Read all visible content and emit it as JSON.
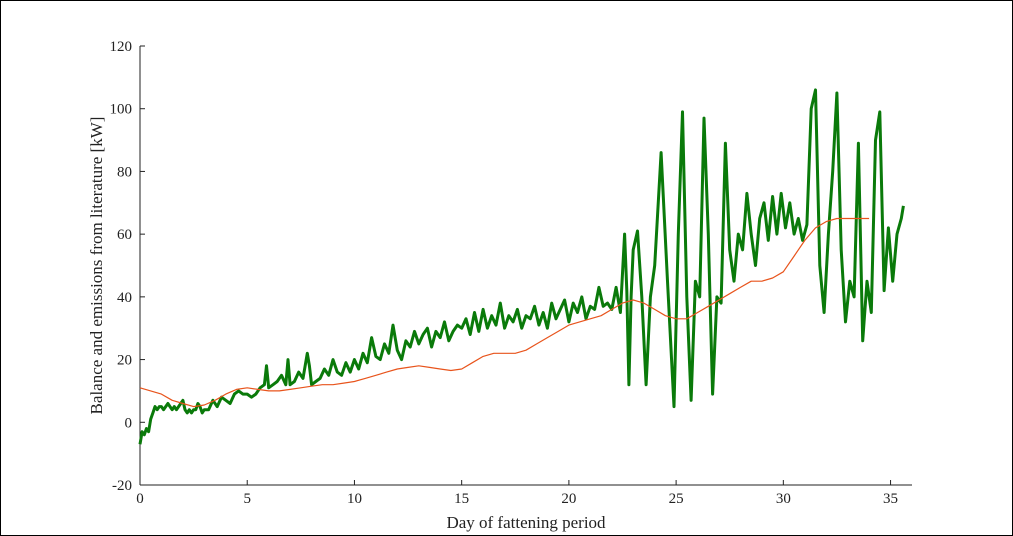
{
  "chart_data": {
    "type": "line",
    "xlabel": "Day of fattening period",
    "ylabel": "Balance and emissions from literature [kW]",
    "xlim": [
      0,
      36
    ],
    "ylim": [
      -20,
      120
    ],
    "xticks": [
      "0",
      "5",
      "10",
      "15",
      "20",
      "25",
      "30",
      "35"
    ],
    "yticks": [
      "-20",
      "0",
      "20",
      "40",
      "60",
      "80",
      "100",
      "120"
    ],
    "grid": false,
    "colors": {
      "balance": "#0a7a0a",
      "literature": "#e8541c"
    },
    "series": [
      {
        "key": "balance",
        "points": [
          [
            0.0,
            -7
          ],
          [
            0.1,
            -3
          ],
          [
            0.2,
            -4
          ],
          [
            0.3,
            -2
          ],
          [
            0.4,
            -3
          ],
          [
            0.5,
            1
          ],
          [
            0.6,
            3
          ],
          [
            0.7,
            5
          ],
          [
            0.8,
            4
          ],
          [
            0.9,
            5
          ],
          [
            1.0,
            5
          ],
          [
            1.1,
            4
          ],
          [
            1.2,
            5
          ],
          [
            1.3,
            6
          ],
          [
            1.4,
            5
          ],
          [
            1.5,
            4
          ],
          [
            1.6,
            5
          ],
          [
            1.7,
            4
          ],
          [
            1.8,
            5
          ],
          [
            1.9,
            6
          ],
          [
            2.0,
            7
          ],
          [
            2.1,
            4
          ],
          [
            2.2,
            3
          ],
          [
            2.3,
            4
          ],
          [
            2.4,
            3
          ],
          [
            2.5,
            4
          ],
          [
            2.6,
            4
          ],
          [
            2.7,
            6
          ],
          [
            2.8,
            5
          ],
          [
            2.9,
            3
          ],
          [
            3.0,
            4
          ],
          [
            3.2,
            4
          ],
          [
            3.4,
            7
          ],
          [
            3.6,
            5
          ],
          [
            3.8,
            8
          ],
          [
            4.0,
            7
          ],
          [
            4.2,
            6
          ],
          [
            4.4,
            9
          ],
          [
            4.6,
            10
          ],
          [
            4.8,
            9
          ],
          [
            5.0,
            9
          ],
          [
            5.2,
            8
          ],
          [
            5.4,
            9
          ],
          [
            5.6,
            11
          ],
          [
            5.8,
            12
          ],
          [
            5.9,
            18
          ],
          [
            6.0,
            11
          ],
          [
            6.2,
            12
          ],
          [
            6.4,
            13
          ],
          [
            6.6,
            15
          ],
          [
            6.8,
            12
          ],
          [
            6.9,
            20
          ],
          [
            7.0,
            12
          ],
          [
            7.2,
            13
          ],
          [
            7.4,
            16
          ],
          [
            7.6,
            14
          ],
          [
            7.8,
            22
          ],
          [
            7.9,
            18
          ],
          [
            8.0,
            12
          ],
          [
            8.2,
            13
          ],
          [
            8.4,
            14
          ],
          [
            8.6,
            17
          ],
          [
            8.8,
            15
          ],
          [
            9.0,
            20
          ],
          [
            9.2,
            16
          ],
          [
            9.4,
            15
          ],
          [
            9.6,
            19
          ],
          [
            9.8,
            16
          ],
          [
            10.0,
            20
          ],
          [
            10.2,
            17
          ],
          [
            10.4,
            22
          ],
          [
            10.6,
            19
          ],
          [
            10.8,
            27
          ],
          [
            11.0,
            21
          ],
          [
            11.2,
            20
          ],
          [
            11.4,
            25
          ],
          [
            11.6,
            22
          ],
          [
            11.8,
            31
          ],
          [
            12.0,
            23
          ],
          [
            12.2,
            20
          ],
          [
            12.4,
            26
          ],
          [
            12.6,
            24
          ],
          [
            12.8,
            29
          ],
          [
            13.0,
            25
          ],
          [
            13.2,
            28
          ],
          [
            13.4,
            30
          ],
          [
            13.6,
            24
          ],
          [
            13.8,
            29
          ],
          [
            14.0,
            27
          ],
          [
            14.2,
            32
          ],
          [
            14.4,
            26
          ],
          [
            14.6,
            29
          ],
          [
            14.8,
            31
          ],
          [
            15.0,
            30
          ],
          [
            15.2,
            33
          ],
          [
            15.4,
            28
          ],
          [
            15.6,
            35
          ],
          [
            15.8,
            29
          ],
          [
            16.0,
            36
          ],
          [
            16.2,
            30
          ],
          [
            16.4,
            34
          ],
          [
            16.6,
            31
          ],
          [
            16.8,
            38
          ],
          [
            17.0,
            30
          ],
          [
            17.2,
            34
          ],
          [
            17.4,
            32
          ],
          [
            17.6,
            36
          ],
          [
            17.8,
            30
          ],
          [
            18.0,
            34
          ],
          [
            18.2,
            33
          ],
          [
            18.4,
            37
          ],
          [
            18.6,
            31
          ],
          [
            18.8,
            35
          ],
          [
            19.0,
            30
          ],
          [
            19.2,
            38
          ],
          [
            19.4,
            33
          ],
          [
            19.6,
            36
          ],
          [
            19.8,
            39
          ],
          [
            20.0,
            32
          ],
          [
            20.2,
            38
          ],
          [
            20.4,
            35
          ],
          [
            20.6,
            40
          ],
          [
            20.8,
            33
          ],
          [
            21.0,
            37
          ],
          [
            21.2,
            36
          ],
          [
            21.4,
            43
          ],
          [
            21.6,
            37
          ],
          [
            21.8,
            38
          ],
          [
            22.0,
            36
          ],
          [
            22.2,
            43
          ],
          [
            22.4,
            35
          ],
          [
            22.6,
            60
          ],
          [
            22.7,
            42
          ],
          [
            22.8,
            12
          ],
          [
            22.9,
            40
          ],
          [
            23.0,
            55
          ],
          [
            23.2,
            61
          ],
          [
            23.4,
            40
          ],
          [
            23.6,
            12
          ],
          [
            23.8,
            40
          ],
          [
            24.0,
            50
          ],
          [
            24.3,
            86
          ],
          [
            24.6,
            45
          ],
          [
            24.9,
            5
          ],
          [
            25.1,
            60
          ],
          [
            25.3,
            99
          ],
          [
            25.5,
            40
          ],
          [
            25.7,
            7
          ],
          [
            25.9,
            45
          ],
          [
            26.1,
            40
          ],
          [
            26.3,
            97
          ],
          [
            26.5,
            60
          ],
          [
            26.7,
            9
          ],
          [
            26.9,
            40
          ],
          [
            27.1,
            38
          ],
          [
            27.3,
            89
          ],
          [
            27.5,
            55
          ],
          [
            27.7,
            45
          ],
          [
            27.9,
            60
          ],
          [
            28.1,
            55
          ],
          [
            28.3,
            73
          ],
          [
            28.5,
            60
          ],
          [
            28.7,
            50
          ],
          [
            28.9,
            65
          ],
          [
            29.1,
            70
          ],
          [
            29.3,
            58
          ],
          [
            29.5,
            72
          ],
          [
            29.7,
            60
          ],
          [
            29.9,
            73
          ],
          [
            30.1,
            62
          ],
          [
            30.3,
            70
          ],
          [
            30.5,
            60
          ],
          [
            30.7,
            65
          ],
          [
            30.9,
            58
          ],
          [
            31.1,
            63
          ],
          [
            31.3,
            100
          ],
          [
            31.5,
            106
          ],
          [
            31.7,
            50
          ],
          [
            31.9,
            35
          ],
          [
            32.1,
            60
          ],
          [
            32.3,
            80
          ],
          [
            32.5,
            105
          ],
          [
            32.7,
            55
          ],
          [
            32.9,
            32
          ],
          [
            33.1,
            45
          ],
          [
            33.3,
            40
          ],
          [
            33.5,
            89
          ],
          [
            33.7,
            26
          ],
          [
            33.9,
            45
          ],
          [
            34.1,
            35
          ],
          [
            34.3,
            90
          ],
          [
            34.5,
            99
          ],
          [
            34.7,
            42
          ],
          [
            34.9,
            62
          ],
          [
            35.1,
            45
          ],
          [
            35.3,
            60
          ],
          [
            35.5,
            65
          ],
          [
            35.6,
            69
          ]
        ]
      },
      {
        "key": "literature",
        "points": [
          [
            0,
            11
          ],
          [
            0.5,
            10
          ],
          [
            1,
            9
          ],
          [
            1.5,
            7
          ],
          [
            2,
            6
          ],
          [
            2.5,
            5
          ],
          [
            3,
            5.5
          ],
          [
            3.5,
            7
          ],
          [
            4,
            9
          ],
          [
            4.5,
            10.5
          ],
          [
            5,
            11
          ],
          [
            5.5,
            10.5
          ],
          [
            6,
            10
          ],
          [
            6.5,
            10
          ],
          [
            7,
            10.5
          ],
          [
            7.5,
            11
          ],
          [
            8,
            11.5
          ],
          [
            8.5,
            12
          ],
          [
            9,
            12
          ],
          [
            9.5,
            12.5
          ],
          [
            10,
            13
          ],
          [
            10.5,
            14
          ],
          [
            11,
            15
          ],
          [
            11.5,
            16
          ],
          [
            12,
            17
          ],
          [
            12.5,
            17.5
          ],
          [
            13,
            18
          ],
          [
            13.5,
            17.5
          ],
          [
            14,
            17
          ],
          [
            14.5,
            16.5
          ],
          [
            15,
            17
          ],
          [
            15.5,
            19
          ],
          [
            16,
            21
          ],
          [
            16.5,
            22
          ],
          [
            17,
            22
          ],
          [
            17.5,
            22
          ],
          [
            18,
            23
          ],
          [
            18.5,
            25
          ],
          [
            19,
            27
          ],
          [
            19.5,
            29
          ],
          [
            20,
            31
          ],
          [
            20.5,
            32
          ],
          [
            21,
            33
          ],
          [
            21.5,
            34
          ],
          [
            22,
            36
          ],
          [
            22.5,
            38
          ],
          [
            23,
            39
          ],
          [
            23.5,
            38
          ],
          [
            24,
            36
          ],
          [
            24.5,
            34
          ],
          [
            25,
            33
          ],
          [
            25.5,
            33
          ],
          [
            26,
            35
          ],
          [
            26.5,
            37
          ],
          [
            27,
            39
          ],
          [
            27.5,
            41
          ],
          [
            28,
            43
          ],
          [
            28.5,
            45
          ],
          [
            29,
            45
          ],
          [
            29.5,
            46
          ],
          [
            30,
            48
          ],
          [
            30.5,
            53
          ],
          [
            31,
            58
          ],
          [
            31.5,
            62
          ],
          [
            32,
            64
          ],
          [
            32.5,
            65
          ],
          [
            33,
            65
          ],
          [
            33.5,
            65
          ],
          [
            34,
            65
          ]
        ]
      }
    ]
  }
}
